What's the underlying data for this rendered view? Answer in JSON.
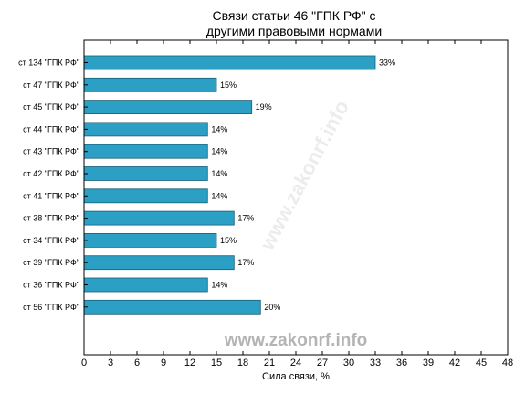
{
  "chart_data": {
    "type": "bar",
    "orientation": "horizontal",
    "title_lines": [
      "Связи статьи 46 \"ГПК РФ\" с",
      "другими правовыми нормами"
    ],
    "xlabel": "Сила связи, %",
    "xlim": [
      0,
      48
    ],
    "xticks": [
      0,
      3,
      6,
      9,
      12,
      15,
      18,
      21,
      24,
      27,
      30,
      33,
      36,
      39,
      42,
      45,
      48
    ],
    "categories": [
      "ст 134 \"ГПК РФ\"",
      "ст 47 \"ГПК РФ\"",
      "ст 45 \"ГПК РФ\"",
      "ст 44 \"ГПК РФ\"",
      "ст 43 \"ГПК РФ\"",
      "ст 42 \"ГПК РФ\"",
      "ст 41 \"ГПК РФ\"",
      "ст 38 \"ГПК РФ\"",
      "ст 34 \"ГПК РФ\"",
      "ст 39 \"ГПК РФ\"",
      "ст 36 \"ГПК РФ\"",
      "ст 56 \"ГПК РФ\""
    ],
    "values": [
      33,
      15,
      19,
      14,
      14,
      14,
      14,
      17,
      15,
      17,
      14,
      20
    ],
    "data_labels": [
      "33%",
      "15%",
      "19%",
      "14%",
      "14%",
      "14%",
      "14%",
      "17%",
      "15%",
      "17%",
      "14%",
      "20%"
    ],
    "bar_color": "#2b9fc4",
    "bar_edge_color": "#1a5f78",
    "grid": false,
    "legend": "none"
  },
  "watermark": "www.zakonrf.info",
  "watermark_diagonal": "www.zakonrf.info"
}
